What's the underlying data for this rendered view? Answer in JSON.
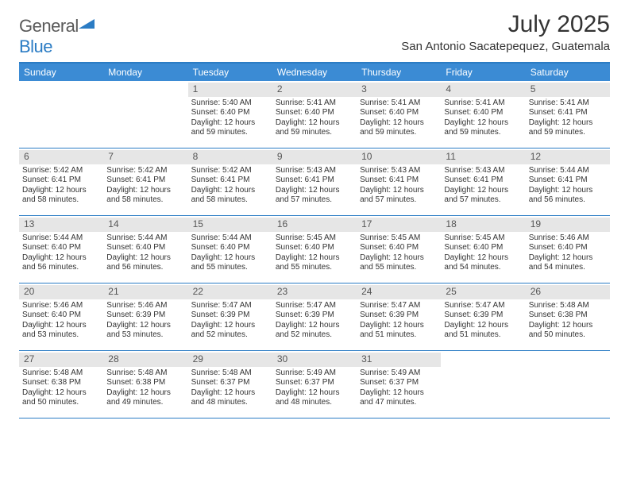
{
  "logo": {
    "text1": "General",
    "text2": "Blue"
  },
  "title": "July 2025",
  "subtitle": "San Antonio Sacatepequez, Guatemala",
  "colors": {
    "header_bg": "#3b8bd4",
    "border": "#2b7cc4",
    "daynum_bg": "#e6e6e6"
  },
  "day_names": [
    "Sunday",
    "Monday",
    "Tuesday",
    "Wednesday",
    "Thursday",
    "Friday",
    "Saturday"
  ],
  "weeks": [
    [
      {
        "n": "",
        "lines": [
          "",
          "",
          "",
          ""
        ],
        "empty": true
      },
      {
        "n": "",
        "lines": [
          "",
          "",
          "",
          ""
        ],
        "empty": true
      },
      {
        "n": "1",
        "lines": [
          "Sunrise: 5:40 AM",
          "Sunset: 6:40 PM",
          "Daylight: 12 hours",
          "and 59 minutes."
        ]
      },
      {
        "n": "2",
        "lines": [
          "Sunrise: 5:41 AM",
          "Sunset: 6:40 PM",
          "Daylight: 12 hours",
          "and 59 minutes."
        ]
      },
      {
        "n": "3",
        "lines": [
          "Sunrise: 5:41 AM",
          "Sunset: 6:40 PM",
          "Daylight: 12 hours",
          "and 59 minutes."
        ]
      },
      {
        "n": "4",
        "lines": [
          "Sunrise: 5:41 AM",
          "Sunset: 6:40 PM",
          "Daylight: 12 hours",
          "and 59 minutes."
        ]
      },
      {
        "n": "5",
        "lines": [
          "Sunrise: 5:41 AM",
          "Sunset: 6:41 PM",
          "Daylight: 12 hours",
          "and 59 minutes."
        ]
      }
    ],
    [
      {
        "n": "6",
        "lines": [
          "Sunrise: 5:42 AM",
          "Sunset: 6:41 PM",
          "Daylight: 12 hours",
          "and 58 minutes."
        ]
      },
      {
        "n": "7",
        "lines": [
          "Sunrise: 5:42 AM",
          "Sunset: 6:41 PM",
          "Daylight: 12 hours",
          "and 58 minutes."
        ]
      },
      {
        "n": "8",
        "lines": [
          "Sunrise: 5:42 AM",
          "Sunset: 6:41 PM",
          "Daylight: 12 hours",
          "and 58 minutes."
        ]
      },
      {
        "n": "9",
        "lines": [
          "Sunrise: 5:43 AM",
          "Sunset: 6:41 PM",
          "Daylight: 12 hours",
          "and 57 minutes."
        ]
      },
      {
        "n": "10",
        "lines": [
          "Sunrise: 5:43 AM",
          "Sunset: 6:41 PM",
          "Daylight: 12 hours",
          "and 57 minutes."
        ]
      },
      {
        "n": "11",
        "lines": [
          "Sunrise: 5:43 AM",
          "Sunset: 6:41 PM",
          "Daylight: 12 hours",
          "and 57 minutes."
        ]
      },
      {
        "n": "12",
        "lines": [
          "Sunrise: 5:44 AM",
          "Sunset: 6:41 PM",
          "Daylight: 12 hours",
          "and 56 minutes."
        ]
      }
    ],
    [
      {
        "n": "13",
        "lines": [
          "Sunrise: 5:44 AM",
          "Sunset: 6:40 PM",
          "Daylight: 12 hours",
          "and 56 minutes."
        ]
      },
      {
        "n": "14",
        "lines": [
          "Sunrise: 5:44 AM",
          "Sunset: 6:40 PM",
          "Daylight: 12 hours",
          "and 56 minutes."
        ]
      },
      {
        "n": "15",
        "lines": [
          "Sunrise: 5:44 AM",
          "Sunset: 6:40 PM",
          "Daylight: 12 hours",
          "and 55 minutes."
        ]
      },
      {
        "n": "16",
        "lines": [
          "Sunrise: 5:45 AM",
          "Sunset: 6:40 PM",
          "Daylight: 12 hours",
          "and 55 minutes."
        ]
      },
      {
        "n": "17",
        "lines": [
          "Sunrise: 5:45 AM",
          "Sunset: 6:40 PM",
          "Daylight: 12 hours",
          "and 55 minutes."
        ]
      },
      {
        "n": "18",
        "lines": [
          "Sunrise: 5:45 AM",
          "Sunset: 6:40 PM",
          "Daylight: 12 hours",
          "and 54 minutes."
        ]
      },
      {
        "n": "19",
        "lines": [
          "Sunrise: 5:46 AM",
          "Sunset: 6:40 PM",
          "Daylight: 12 hours",
          "and 54 minutes."
        ]
      }
    ],
    [
      {
        "n": "20",
        "lines": [
          "Sunrise: 5:46 AM",
          "Sunset: 6:40 PM",
          "Daylight: 12 hours",
          "and 53 minutes."
        ]
      },
      {
        "n": "21",
        "lines": [
          "Sunrise: 5:46 AM",
          "Sunset: 6:39 PM",
          "Daylight: 12 hours",
          "and 53 minutes."
        ]
      },
      {
        "n": "22",
        "lines": [
          "Sunrise: 5:47 AM",
          "Sunset: 6:39 PM",
          "Daylight: 12 hours",
          "and 52 minutes."
        ]
      },
      {
        "n": "23",
        "lines": [
          "Sunrise: 5:47 AM",
          "Sunset: 6:39 PM",
          "Daylight: 12 hours",
          "and 52 minutes."
        ]
      },
      {
        "n": "24",
        "lines": [
          "Sunrise: 5:47 AM",
          "Sunset: 6:39 PM",
          "Daylight: 12 hours",
          "and 51 minutes."
        ]
      },
      {
        "n": "25",
        "lines": [
          "Sunrise: 5:47 AM",
          "Sunset: 6:39 PM",
          "Daylight: 12 hours",
          "and 51 minutes."
        ]
      },
      {
        "n": "26",
        "lines": [
          "Sunrise: 5:48 AM",
          "Sunset: 6:38 PM",
          "Daylight: 12 hours",
          "and 50 minutes."
        ]
      }
    ],
    [
      {
        "n": "27",
        "lines": [
          "Sunrise: 5:48 AM",
          "Sunset: 6:38 PM",
          "Daylight: 12 hours",
          "and 50 minutes."
        ]
      },
      {
        "n": "28",
        "lines": [
          "Sunrise: 5:48 AM",
          "Sunset: 6:38 PM",
          "Daylight: 12 hours",
          "and 49 minutes."
        ]
      },
      {
        "n": "29",
        "lines": [
          "Sunrise: 5:48 AM",
          "Sunset: 6:37 PM",
          "Daylight: 12 hours",
          "and 48 minutes."
        ]
      },
      {
        "n": "30",
        "lines": [
          "Sunrise: 5:49 AM",
          "Sunset: 6:37 PM",
          "Daylight: 12 hours",
          "and 48 minutes."
        ]
      },
      {
        "n": "31",
        "lines": [
          "Sunrise: 5:49 AM",
          "Sunset: 6:37 PM",
          "Daylight: 12 hours",
          "and 47 minutes."
        ]
      },
      {
        "n": "",
        "lines": [
          "",
          "",
          "",
          ""
        ],
        "empty": true
      },
      {
        "n": "",
        "lines": [
          "",
          "",
          "",
          ""
        ],
        "empty": true
      }
    ]
  ]
}
